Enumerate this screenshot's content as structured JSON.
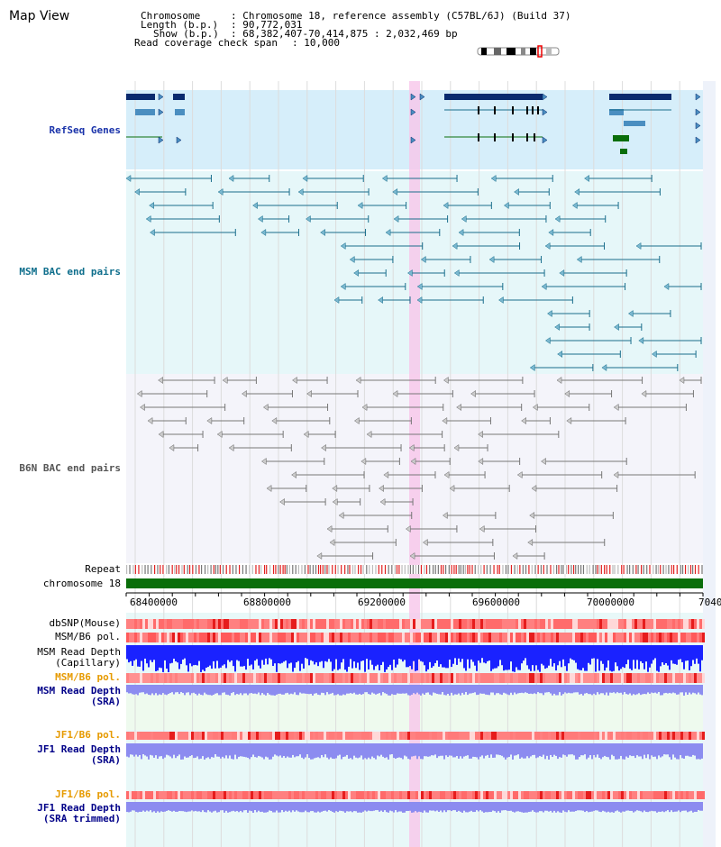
{
  "page": {
    "title": "Map View"
  },
  "header": {
    "chromosome_label": "Chromosome",
    "chromosome_value": ": Chromosome 18, reference assembly (C57BL/6J) (Build 37)",
    "length_label": "Length (b.p.)",
    "length_value": ": 90,772,031",
    "show_label": "Show (b.p.)",
    "show_value": ": 68,382,407-70,414,875 : 2,032,469 bp",
    "coverage_label": "Read coverage check span",
    "coverage_value": ": 10,000"
  },
  "tracks": {
    "refseq": "RefSeq Genes",
    "msm_bac": "MSM BAC end pairs",
    "b6n_bac": "B6N BAC end pairs",
    "repeat": "Repeat",
    "chromosome": "chromosome 18",
    "dbsnp": "dbSNP(Mouse)",
    "msm_b6_pol_1": "MSM/B6 pol.",
    "msm_read_depth_cap_1": "MSM Read Depth",
    "msm_read_depth_cap_2": "(Capillary)",
    "msm_b6_pol_2": "MSM/B6 pol.",
    "msm_read_depth_sra_1": "MSM Read Depth",
    "msm_read_depth_sra_2": "(SRA)",
    "jf1_b6_pol_1": "JF1/B6 pol.",
    "jf1_read_depth_1": "JF1 Read Depth",
    "jf1_read_depth_2": "(SRA)",
    "jf1_b6_pol_2": "JF1/B6 pol.",
    "jf1_trim_1": "JF1 Read Depth",
    "jf1_trim_2": "(SRA trimmed)"
  },
  "ruler": {
    "ticks": [
      "68400000",
      "68800000",
      "69200000",
      "69600000",
      "70000000",
      "7040"
    ]
  },
  "colors": {
    "refseq_bg": "#d6eefa",
    "msm_bg": "#e6f7f9",
    "b6n_bg": "#f4f4fa",
    "chromosome_bar": "#0a6e0a",
    "highlight": "#f7c6ea",
    "gene_dark": "#0a2a6e",
    "gene_mid": "#4a8ec0",
    "gene_green": "#0a6e0a",
    "msm_line": "#1a6e8c",
    "b6n_line": "#777777",
    "snp_red": "#ff6b6b",
    "depth_blue": "#1a22ff",
    "depth_lavender": "#8c8cf0"
  }
}
